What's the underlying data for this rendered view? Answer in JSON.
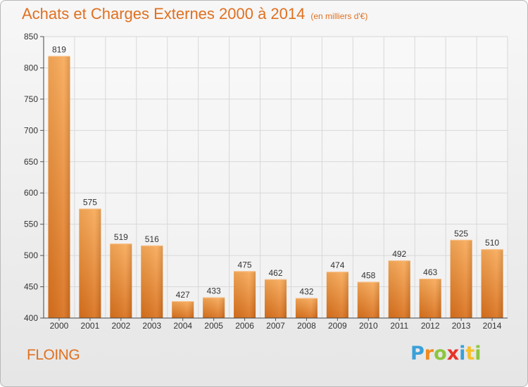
{
  "header": {
    "title": "Achats et Charges Externes 2000 à 2014",
    "unit_note": "(en milliers d'€)"
  },
  "footer": {
    "commune": "FLOING",
    "brand_letters": [
      "P",
      "r",
      "o",
      "x",
      "i",
      "t",
      "i"
    ],
    "brand_colors": [
      "#3aa0d8",
      "#f08a20",
      "#8cc63f",
      "#e8322a",
      "#3aa0d8",
      "#f6c12a",
      "#8cc63f"
    ]
  },
  "colors": {
    "accent": "#e07020",
    "bar_light": "#f6a656",
    "bar_dark": "#d9731e",
    "grid": "#d8d8d8"
  },
  "chart_data": {
    "type": "bar",
    "title": "Achats et Charges Externes 2000 à 2014",
    "subtitle": "(en milliers d'€)",
    "categories": [
      "2000",
      "2001",
      "2002",
      "2003",
      "2004",
      "2005",
      "2006",
      "2007",
      "2008",
      "2009",
      "2010",
      "2011",
      "2012",
      "2013",
      "2014"
    ],
    "values": [
      819,
      575,
      519,
      516,
      427,
      433,
      475,
      462,
      432,
      474,
      458,
      492,
      463,
      525,
      510
    ],
    "yticks": [
      400,
      450,
      500,
      550,
      600,
      650,
      700,
      750,
      800,
      850
    ],
    "ylim": [
      400,
      850
    ],
    "grid": true,
    "legend": "none"
  }
}
